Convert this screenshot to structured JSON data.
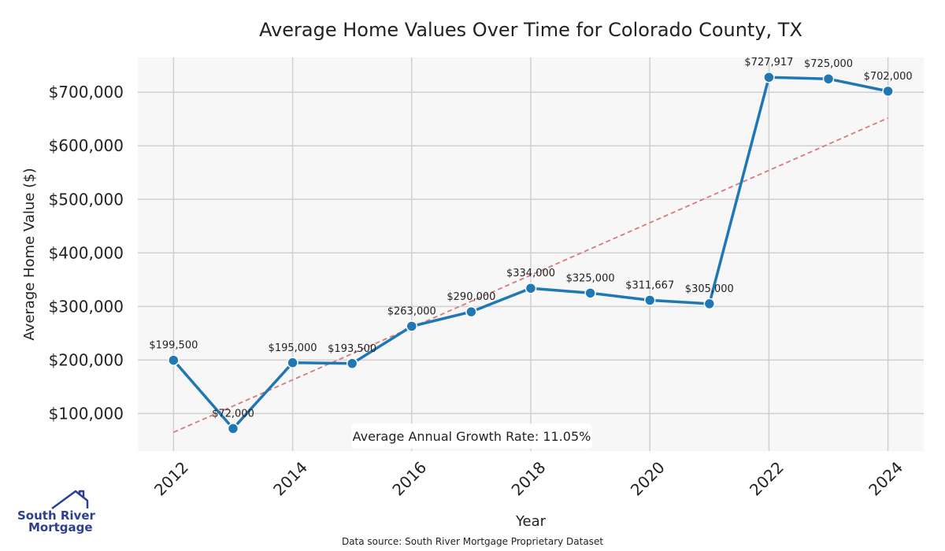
{
  "chart_data": {
    "type": "line",
    "title": "Average Home Values Over Time for Colorado County, TX",
    "xlabel": "Year",
    "ylabel": "Average Home Value ($)",
    "x": [
      2012,
      2013,
      2014,
      2015,
      2016,
      2017,
      2018,
      2019,
      2020,
      2021,
      2022,
      2023,
      2024
    ],
    "values": [
      199500,
      72000,
      195000,
      193500,
      263000,
      290000,
      334000,
      325000,
      311667,
      305000,
      727917,
      725000,
      702000
    ],
    "labels": [
      "$199,500",
      "$72,000",
      "$195,000",
      "$193,500",
      "$263,000",
      "$290,000",
      "$334,000",
      "$325,000",
      "$311,667",
      "$305,000",
      "$727,917",
      "$725,000",
      "$702,000"
    ],
    "xticks": [
      "2012",
      "2014",
      "2016",
      "2018",
      "2020",
      "2022",
      "2024"
    ],
    "yticks": [
      100000,
      200000,
      300000,
      400000,
      500000,
      600000,
      700000
    ],
    "ytick_labels": [
      "$100,000",
      "$200,000",
      "$300,000",
      "$400,000",
      "$500,000",
      "$600,000",
      "$700,000"
    ],
    "xlim": [
      2011.4,
      2024.6
    ],
    "ylim": [
      30000,
      765000
    ],
    "trend": {
      "start": [
        2012,
        65000
      ],
      "end": [
        2024,
        652000
      ]
    },
    "grid": true,
    "colors": {
      "line": "#1f77b4",
      "trend": "#d67b7b",
      "plot_bg": "#f7f7f7",
      "grid": "#cfcfcf"
    },
    "annotation": "Average Annual Growth Rate: 11.05%",
    "source": "Data source: South River Mortgage Proprietary Dataset"
  },
  "logo": {
    "line1": "South River",
    "line2": "Mortgage"
  }
}
